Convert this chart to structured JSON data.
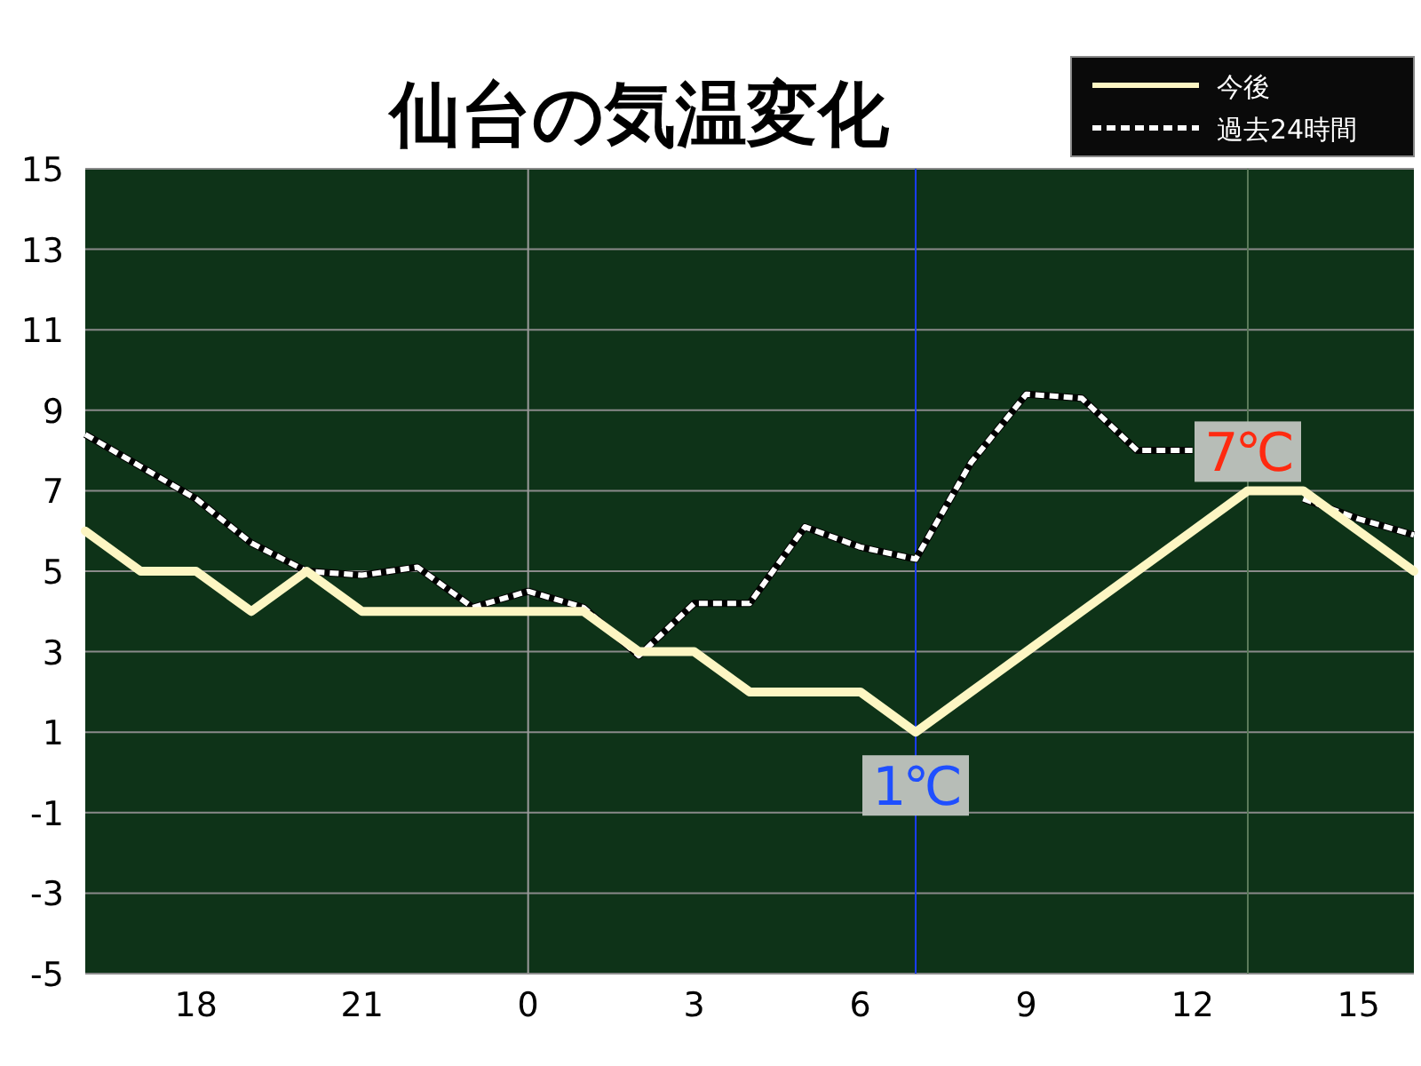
{
  "chart_data": {
    "type": "line",
    "title": "仙台の気温変化",
    "categories": [
      null,
      null,
      "18",
      null,
      null,
      "21",
      null,
      null,
      "0",
      null,
      null,
      "3",
      null,
      null,
      "6",
      null,
      null,
      "9",
      null,
      null,
      "12",
      null,
      null,
      "15",
      null
    ],
    "series": [
      {
        "name": "今後",
        "color": "#fdf6c3",
        "line_style": "solid",
        "values": [
          6,
          5,
          5,
          4,
          5,
          4,
          4,
          4,
          4,
          4,
          3,
          3,
          2,
          2,
          2,
          1,
          2,
          3,
          4,
          5,
          6,
          7,
          7,
          6,
          5
        ]
      },
      {
        "name": "過去24時間",
        "color": "#ffffff",
        "line_style": "dashed",
        "values": [
          8.4,
          7.6,
          6.8,
          5.7,
          5.0,
          4.9,
          5.1,
          4.1,
          4.5,
          4.1,
          2.9,
          4.2,
          4.2,
          6.1,
          5.6,
          5.3,
          7.7,
          9.4,
          9.3,
          8.0,
          8.0,
          null,
          6.8,
          6.3,
          5.9
        ]
      }
    ],
    "ylim": [
      -5,
      15
    ],
    "yticks": [
      -5,
      -3,
      -1,
      1,
      3,
      5,
      7,
      9,
      11,
      13,
      15
    ],
    "grid": "y",
    "legend": "top right",
    "ref_lines": [
      {
        "axis": "x",
        "value": "0",
        "color": "#9a9a9a"
      }
    ],
    "annotations": [
      {
        "text": "1℃",
        "y": 1
      },
      {
        "text": "7℃",
        "y": 7
      }
    ]
  }
}
